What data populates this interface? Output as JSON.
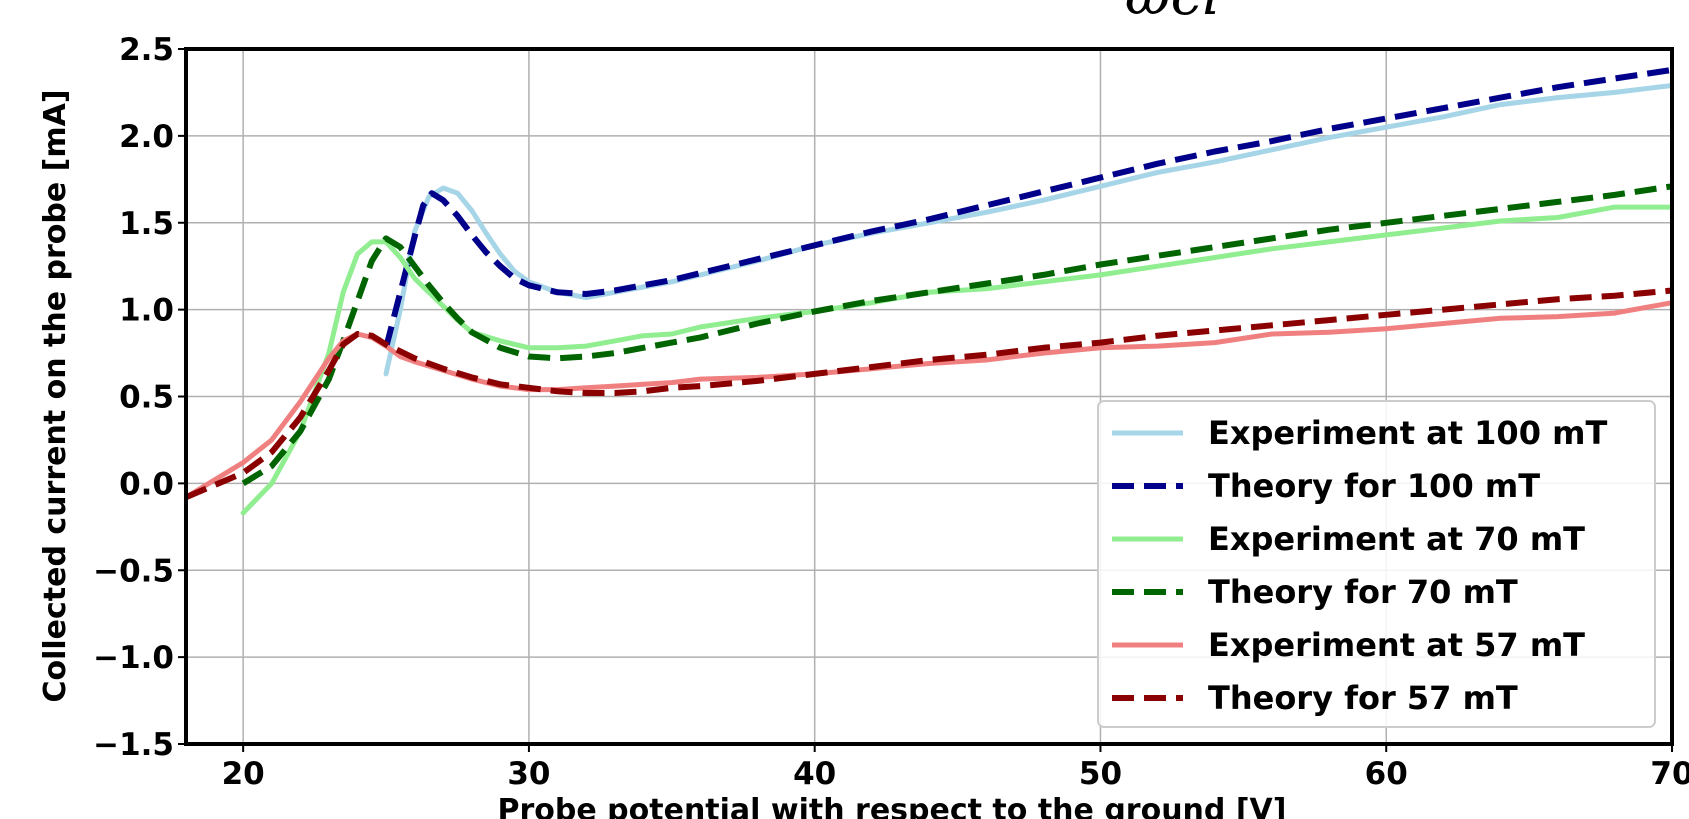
{
  "top_fragment": "−ωci−",
  "chart_data": {
    "type": "line",
    "xlabel": "Probe potential with respect to the ground [V]",
    "ylabel": "Collected current on the probe [mA]",
    "xlim": [
      18,
      70
    ],
    "ylim": [
      -1.5,
      2.5
    ],
    "xticks": [
      "20",
      "30",
      "40",
      "50",
      "60",
      "70"
    ],
    "yticks": [
      "−1.5",
      "−1.0",
      "−0.5",
      "0.0",
      "0.5",
      "1.0",
      "1.5",
      "2.0",
      "2.5"
    ],
    "grid": true,
    "legend_position": "lower-right",
    "series": [
      {
        "name": "Experiment at 100 mT",
        "color": "#a6d5e8",
        "style": "solid",
        "x": [
          25,
          25.5,
          26,
          26.5,
          27,
          27.5,
          28,
          28.5,
          29,
          29.5,
          30,
          31,
          32,
          33,
          34,
          35,
          36,
          38,
          40,
          42,
          44,
          46,
          48,
          50,
          52,
          54,
          56,
          58,
          60,
          62,
          64,
          66,
          68,
          70
        ],
        "y": [
          0.63,
          1.0,
          1.45,
          1.65,
          1.7,
          1.67,
          1.57,
          1.44,
          1.32,
          1.22,
          1.16,
          1.1,
          1.07,
          1.1,
          1.13,
          1.16,
          1.2,
          1.28,
          1.37,
          1.44,
          1.5,
          1.56,
          1.63,
          1.71,
          1.79,
          1.85,
          1.92,
          1.99,
          2.05,
          2.11,
          2.18,
          2.22,
          2.25,
          2.29
        ]
      },
      {
        "name": "Theory for 100 mT",
        "color": "#00008b",
        "style": "dashed",
        "x": [
          25,
          25.5,
          26,
          26.3,
          26.6,
          27,
          27.5,
          28,
          28.5,
          29,
          29.5,
          30,
          31,
          32,
          33,
          34,
          35,
          36,
          38,
          40,
          42,
          44,
          46,
          48,
          50,
          52,
          54,
          56,
          58,
          60,
          62,
          64,
          66,
          68,
          70
        ],
        "y": [
          0.78,
          1.1,
          1.42,
          1.6,
          1.67,
          1.63,
          1.54,
          1.43,
          1.33,
          1.25,
          1.18,
          1.14,
          1.1,
          1.09,
          1.11,
          1.14,
          1.17,
          1.21,
          1.29,
          1.37,
          1.45,
          1.52,
          1.6,
          1.68,
          1.76,
          1.84,
          1.91,
          1.97,
          2.04,
          2.1,
          2.16,
          2.22,
          2.28,
          2.33,
          2.38
        ]
      },
      {
        "name": "Experiment at 70 mT",
        "color": "#90ee90",
        "style": "solid",
        "x": [
          20,
          21,
          22,
          23,
          23.5,
          24,
          24.5,
          25,
          25.5,
          26,
          26.5,
          27,
          27.5,
          28,
          29,
          30,
          31,
          32,
          33,
          34,
          35,
          36,
          38,
          40,
          42,
          44,
          46,
          48,
          50,
          52,
          54,
          56,
          58,
          60,
          62,
          64,
          66,
          68,
          70
        ],
        "y": [
          -0.17,
          0.0,
          0.3,
          0.75,
          1.1,
          1.32,
          1.39,
          1.39,
          1.3,
          1.18,
          1.1,
          1.02,
          0.94,
          0.87,
          0.82,
          0.78,
          0.78,
          0.79,
          0.82,
          0.85,
          0.86,
          0.9,
          0.95,
          0.99,
          1.04,
          1.1,
          1.12,
          1.16,
          1.2,
          1.25,
          1.3,
          1.35,
          1.39,
          1.43,
          1.47,
          1.51,
          1.53,
          1.59,
          1.59
        ]
      },
      {
        "name": "Theory for 70 mT",
        "color": "#006400",
        "style": "dashed",
        "x": [
          20,
          21,
          22,
          23,
          23.5,
          24,
          24.5,
          25,
          25.5,
          26,
          26.5,
          27,
          27.5,
          28,
          29,
          30,
          31,
          32,
          33,
          34,
          35,
          36,
          38,
          40,
          42,
          44,
          46,
          48,
          50,
          52,
          54,
          56,
          58,
          60,
          62,
          64,
          66,
          68,
          70
        ],
        "y": [
          0.0,
          0.1,
          0.3,
          0.6,
          0.82,
          1.05,
          1.28,
          1.41,
          1.36,
          1.25,
          1.14,
          1.04,
          0.95,
          0.87,
          0.78,
          0.73,
          0.72,
          0.73,
          0.75,
          0.78,
          0.81,
          0.84,
          0.92,
          0.99,
          1.05,
          1.1,
          1.15,
          1.2,
          1.26,
          1.31,
          1.36,
          1.41,
          1.46,
          1.5,
          1.54,
          1.58,
          1.62,
          1.66,
          1.71
        ]
      },
      {
        "name": "Experiment at 57 mT",
        "color": "#f08080",
        "style": "solid",
        "x": [
          18,
          19,
          20,
          21,
          22,
          23,
          23.5,
          24,
          24.5,
          25,
          25.5,
          26,
          27,
          28,
          29,
          30,
          31,
          32,
          33,
          34,
          35,
          36,
          38,
          40,
          42,
          44,
          46,
          48,
          50,
          52,
          54,
          56,
          58,
          60,
          62,
          64,
          66,
          68,
          70
        ],
        "y": [
          -0.08,
          0.02,
          0.12,
          0.25,
          0.47,
          0.72,
          0.82,
          0.86,
          0.84,
          0.79,
          0.73,
          0.7,
          0.65,
          0.6,
          0.56,
          0.54,
          0.54,
          0.55,
          0.56,
          0.57,
          0.58,
          0.6,
          0.61,
          0.63,
          0.66,
          0.69,
          0.71,
          0.75,
          0.78,
          0.79,
          0.81,
          0.86,
          0.87,
          0.89,
          0.92,
          0.95,
          0.96,
          0.98,
          1.04
        ]
      },
      {
        "name": "Theory for 57 mT",
        "color": "#8b0000",
        "style": "dashed",
        "x": [
          18,
          19,
          20,
          21,
          22,
          23,
          23.5,
          24,
          24.5,
          25,
          26,
          27,
          28,
          29,
          30,
          31,
          32,
          33,
          34,
          35,
          36,
          38,
          40,
          42,
          44,
          46,
          48,
          50,
          52,
          54,
          56,
          58,
          60,
          62,
          64,
          66,
          68,
          70
        ],
        "y": [
          -0.08,
          -0.01,
          0.06,
          0.18,
          0.38,
          0.65,
          0.8,
          0.86,
          0.85,
          0.8,
          0.72,
          0.66,
          0.61,
          0.57,
          0.55,
          0.53,
          0.52,
          0.52,
          0.53,
          0.55,
          0.56,
          0.59,
          0.63,
          0.67,
          0.71,
          0.74,
          0.78,
          0.81,
          0.85,
          0.88,
          0.91,
          0.94,
          0.97,
          1.0,
          1.03,
          1.06,
          1.08,
          1.11
        ]
      }
    ]
  }
}
